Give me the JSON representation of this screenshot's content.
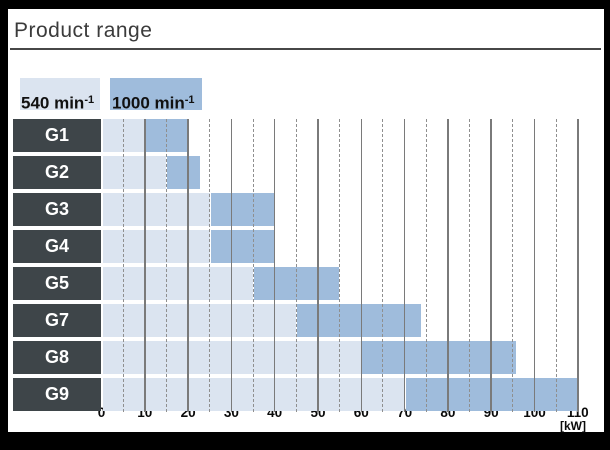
{
  "window": {
    "title": "Product range"
  },
  "legend": {
    "items": [
      {
        "text": "540 min",
        "sup": "-1",
        "color": "#dbe4f0"
      },
      {
        "text": "1000 min",
        "sup": "-1",
        "color": "#9fbcdc"
      }
    ]
  },
  "colors": {
    "bar_540": "#dbe4f0",
    "bar_1000": "#9fbcdc",
    "row_label_bg": "#3e4549",
    "row_label_text": "#ffffff",
    "grid_major": "#7a7a7a",
    "grid_minor": "#8f8f8f",
    "frame": "#000000",
    "background": "#ffffff",
    "title_text": "#3b3b3b"
  },
  "chart_data": {
    "type": "bar",
    "orientation": "horizontal-range",
    "title": "Product range",
    "categories": [
      "G1",
      "G2",
      "G3",
      "G4",
      "G5",
      "G7",
      "G8",
      "G9"
    ],
    "series": [
      {
        "name": "540 min-1",
        "ranges_kw": [
          [
            0,
            10
          ],
          [
            0,
            15
          ],
          [
            0,
            25
          ],
          [
            0,
            25
          ],
          [
            0,
            35
          ],
          [
            0,
            45
          ],
          [
            0,
            60
          ],
          [
            0,
            70
          ]
        ]
      },
      {
        "name": "1000 min-1",
        "ranges_kw": [
          [
            10,
            20
          ],
          [
            15,
            23
          ],
          [
            25,
            40
          ],
          [
            25,
            40
          ],
          [
            35,
            55
          ],
          [
            45,
            74
          ],
          [
            60,
            96
          ],
          [
            70,
            110
          ]
        ]
      }
    ],
    "xlabel": "[kW]",
    "xlim": [
      0,
      110
    ],
    "xticks": [
      0,
      10,
      20,
      30,
      40,
      50,
      60,
      70,
      80,
      90,
      100,
      110
    ],
    "minor_gridlines": [
      5,
      15,
      25,
      35,
      45,
      55,
      65,
      75,
      85,
      95,
      105
    ],
    "grid": true,
    "legend_position": "top-left"
  }
}
